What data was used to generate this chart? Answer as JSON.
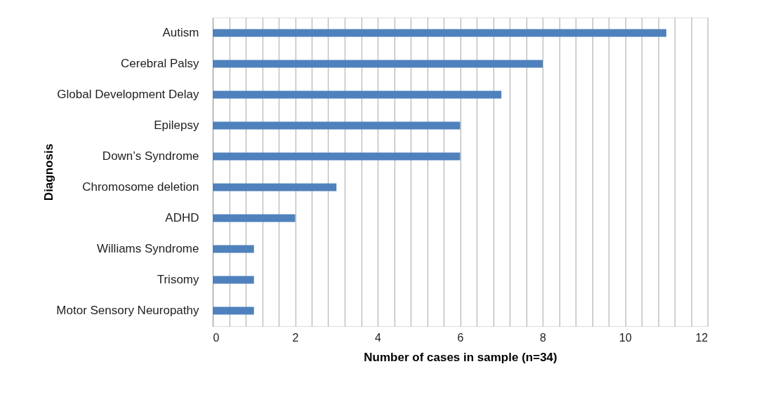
{
  "chart_data": {
    "type": "bar",
    "orientation": "horizontal",
    "xlabel": "Number of cases in sample (n=34)",
    "ylabel": "Diagnosis",
    "categories": [
      "Autism",
      "Cerebral Palsy",
      "Global Development Delay",
      "Epilepsy",
      "Down’s Syndrome",
      "Chromosome deletion",
      "ADHD",
      "Williams Syndrome",
      "Trisomy",
      "Motor Sensory Neuropathy"
    ],
    "values": [
      11,
      8,
      7,
      6,
      6,
      3,
      2,
      1,
      1,
      1
    ],
    "color": "#4f81bd",
    "xlim": [
      0,
      12
    ],
    "xticks": [
      0,
      {
        "value": 0.4,
        "label": null
      },
      {
        "value": 0.8,
        "label": null
      },
      {
        "value": 1.2,
        "label": null
      },
      {
        "value": 1.6,
        "label": null
      },
      2,
      {
        "value": 2.4,
        "label": null
      },
      {
        "value": 2.8,
        "label": null
      },
      {
        "value": 3.2,
        "label": null
      },
      {
        "value": 3.6,
        "label": null
      },
      4,
      {
        "value": 4.4,
        "label": null
      },
      {
        "value": 4.8,
        "label": null
      },
      {
        "value": 5.2,
        "label": null
      },
      {
        "value": 5.6,
        "label": null
      },
      6,
      {
        "value": 6.4,
        "label": null
      },
      {
        "value": 6.8,
        "label": null
      },
      {
        "value": 7.2,
        "label": null
      },
      {
        "value": 7.6,
        "label": null
      },
      8,
      {
        "value": 8.4,
        "label": null
      },
      {
        "value": 8.8,
        "label": null
      },
      {
        "value": 9.2,
        "label": null
      },
      {
        "value": 9.6,
        "label": null
      },
      10,
      {
        "value": 10.4,
        "label": null
      },
      {
        "value": 10.8,
        "label": null
      },
      {
        "value": 11.2,
        "label": null
      },
      {
        "value": 11.6,
        "label": null
      },
      12
    ],
    "grid": "x"
  }
}
